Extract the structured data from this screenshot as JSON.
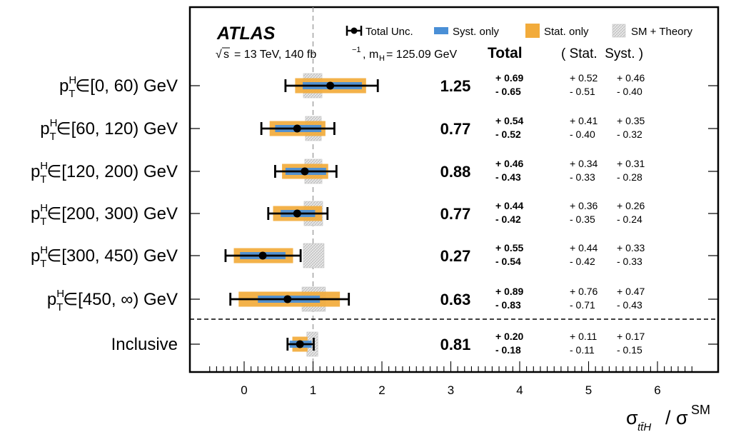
{
  "chart_data": {
    "type": "forest",
    "experiment": "ATLAS",
    "energy_label": "= 13 TeV, 140 fb",
    "mass_label": "m",
    "mass_value": "= 125.09 GeV",
    "xlabel_main": "σ",
    "xlabel_sub": "tt̄H",
    "xlabel_den": "/ σ",
    "xlabel_sup": "SM",
    "xlim": [
      -0.75,
      7.0
    ],
    "xticks": [
      "0",
      "1",
      "2",
      "3",
      "4",
      "5",
      "6"
    ],
    "sm_reference": 1.0,
    "header": {
      "total": "Total",
      "stat_syst": "( Stat.  Syst. )"
    },
    "legend": [
      {
        "label": "Total Unc.",
        "kind": "errorbar",
        "color": "#000000"
      },
      {
        "label": "Syst. only",
        "kind": "box",
        "color": "#4a8fd6"
      },
      {
        "label": "Stat. only",
        "kind": "box",
        "color": "#f2ab3b"
      },
      {
        "label": "SM + Theory",
        "kind": "hatch",
        "color": "#d0d0d0"
      }
    ],
    "colors": {
      "syst": "#4a8fd6",
      "stat": "#f2ab3b",
      "theory": "#dcdcdc",
      "reference": "#999999"
    },
    "categories": [
      {
        "label": "∈[0, 60) GeV",
        "value": 1.25,
        "value_text": "1.25",
        "tot_up": 0.69,
        "tot_dn": 0.65,
        "stat_up": 0.52,
        "stat_dn": 0.51,
        "syst_up": 0.46,
        "syst_dn": 0.4,
        "tot_up_text": "+ 0.69",
        "tot_dn_text": "- 0.65",
        "stat_up_text": "+ 0.52",
        "stat_dn_text": "-  0.51",
        "syst_up_text": "+ 0.46",
        "syst_dn_text": "-  0.40",
        "th_up": 0.13,
        "th_dn": 0.14
      },
      {
        "label": "∈[60, 120) GeV",
        "value": 0.77,
        "value_text": "0.77",
        "tot_up": 0.54,
        "tot_dn": 0.52,
        "stat_up": 0.41,
        "stat_dn": 0.4,
        "syst_up": 0.35,
        "syst_dn": 0.32,
        "tot_up_text": "+ 0.54",
        "tot_dn_text": "- 0.52",
        "stat_up_text": "+ 0.41",
        "stat_dn_text": "-  0.40",
        "syst_up_text": "+ 0.35",
        "syst_dn_text": "-  0.32",
        "th_up": 0.12,
        "th_dn": 0.11
      },
      {
        "label": "∈[120, 200) GeV",
        "value": 0.88,
        "value_text": "0.88",
        "tot_up": 0.46,
        "tot_dn": 0.43,
        "stat_up": 0.34,
        "stat_dn": 0.33,
        "syst_up": 0.31,
        "syst_dn": 0.28,
        "tot_up_text": "+ 0.46",
        "tot_dn_text": "- 0.43",
        "stat_up_text": "+ 0.34",
        "stat_dn_text": "-  0.33",
        "syst_up_text": "+ 0.31",
        "syst_dn_text": "-  0.28",
        "th_up": 0.13,
        "th_dn": 0.12
      },
      {
        "label": "∈[200, 300) GeV",
        "value": 0.77,
        "value_text": "0.77",
        "tot_up": 0.44,
        "tot_dn": 0.42,
        "stat_up": 0.36,
        "stat_dn": 0.35,
        "syst_up": 0.26,
        "syst_dn": 0.24,
        "tot_up_text": "+ 0.44",
        "tot_dn_text": "- 0.42",
        "stat_up_text": "+ 0.36",
        "stat_dn_text": "-  0.35",
        "syst_up_text": "+ 0.26",
        "syst_dn_text": "-  0.24",
        "th_up": 0.14,
        "th_dn": 0.13
      },
      {
        "label": "∈[300, 450) GeV",
        "value": 0.27,
        "value_text": "0.27",
        "tot_up": 0.55,
        "tot_dn": 0.54,
        "stat_up": 0.44,
        "stat_dn": 0.42,
        "syst_up": 0.33,
        "syst_dn": 0.33,
        "tot_up_text": "+ 0.55",
        "tot_dn_text": "- 0.54",
        "stat_up_text": "+ 0.44",
        "stat_dn_text": "-  0.42",
        "syst_up_text": "+ 0.33",
        "syst_dn_text": "-  0.33",
        "th_up": 0.16,
        "th_dn": 0.14
      },
      {
        "label": "∈[450, ∞) GeV",
        "value": 0.63,
        "value_text": "0.63",
        "tot_up": 0.89,
        "tot_dn": 0.83,
        "stat_up": 0.76,
        "stat_dn": 0.71,
        "syst_up": 0.47,
        "syst_dn": 0.43,
        "tot_up_text": "+ 0.89",
        "tot_dn_text": "- 0.83",
        "stat_up_text": "+ 0.76",
        "stat_dn_text": "-  0.71",
        "syst_up_text": "+ 0.47",
        "syst_dn_text": "-  0.43",
        "th_up": 0.18,
        "th_dn": 0.16
      },
      {
        "label": "Inclusive",
        "value": 0.81,
        "value_text": "0.81",
        "inclusive": true,
        "tot_up": 0.2,
        "tot_dn": 0.18,
        "stat_up": 0.11,
        "stat_dn": 0.11,
        "syst_up": 0.17,
        "syst_dn": 0.15,
        "tot_up_text": "+ 0.20",
        "tot_dn_text": "- 0.18",
        "stat_up_text": "+ 0.11",
        "stat_dn_text": "-  0.11",
        "syst_up_text": "+ 0.17",
        "syst_dn_text": "-  0.15",
        "th_up": 0.07,
        "th_dn": 0.09
      }
    ]
  }
}
